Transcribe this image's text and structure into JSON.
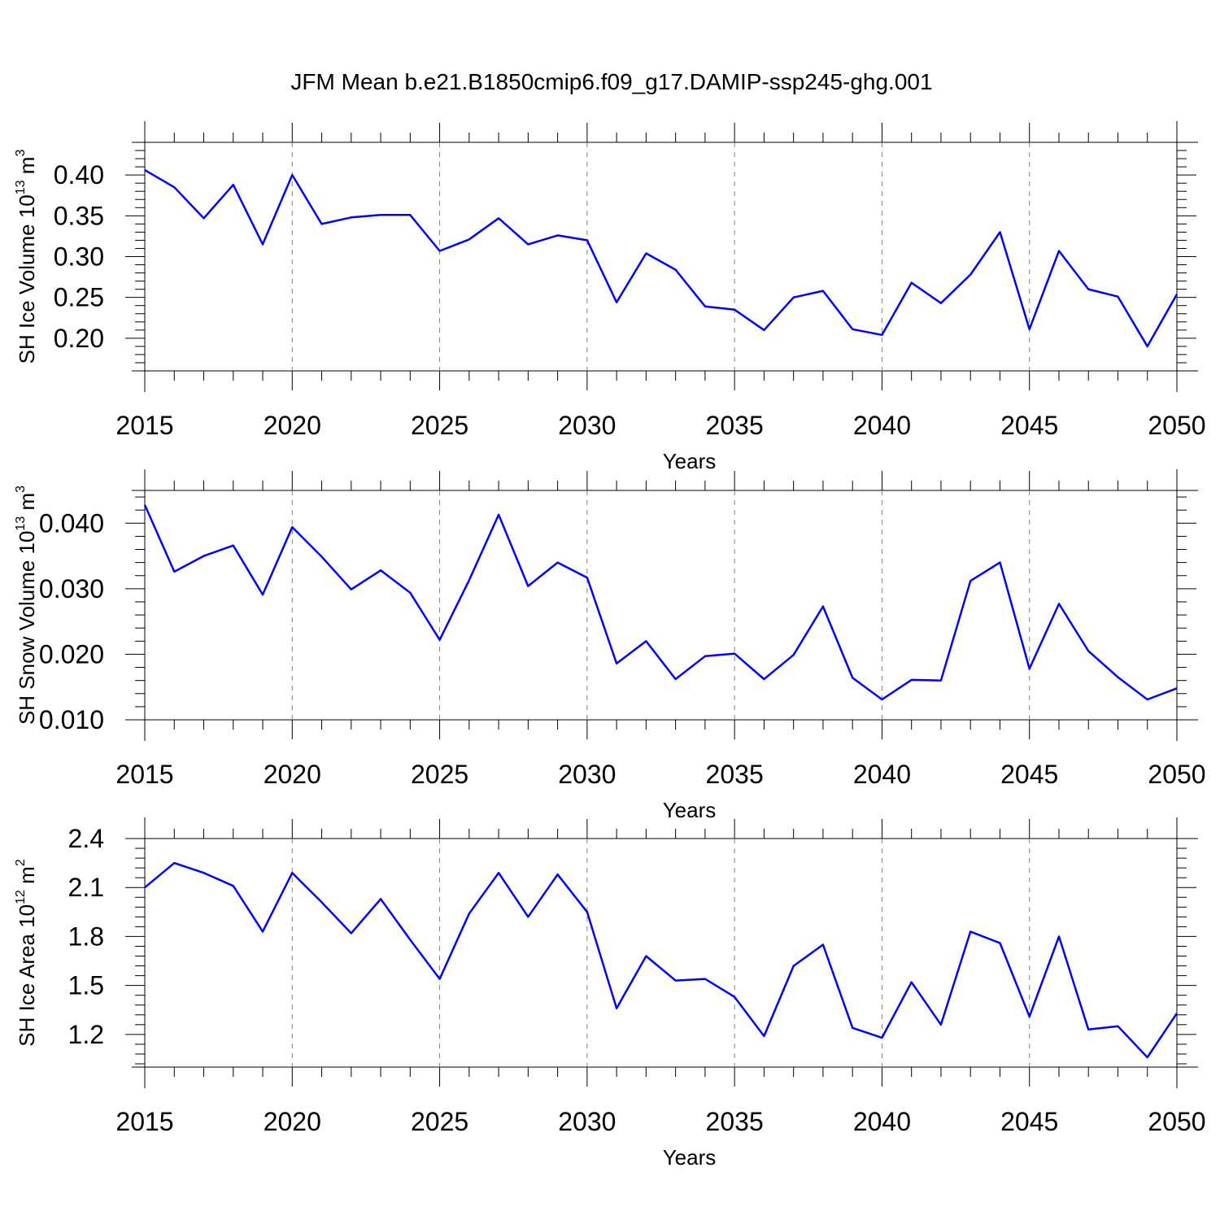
{
  "title": "JFM Mean b.e21.B1850cmip6.f09_g17.DAMIP-ssp245-ghg.001",
  "line_color": "#0000ff",
  "chart_data": [
    {
      "type": "line",
      "title": "",
      "xlabel": "Years",
      "ylabel": {
        "base": "SH Ice Volume 10",
        "exp": "13",
        "unit": " m",
        "unit_exp": "3"
      },
      "xlim": [
        2015,
        2050
      ],
      "ylim": [
        0.16,
        0.44
      ],
      "xticks": [
        "2015",
        "2020",
        "2025",
        "2030",
        "2035",
        "2040",
        "2045",
        "2050"
      ],
      "yticks": [
        "0.20",
        "0.25",
        "0.30",
        "0.35",
        "0.40"
      ],
      "grid": "vertical dashed at major x ticks",
      "x": [
        2015,
        2016,
        2017,
        2018,
        2019,
        2020,
        2021,
        2022,
        2023,
        2024,
        2025,
        2026,
        2027,
        2028,
        2029,
        2030,
        2031,
        2032,
        2033,
        2034,
        2035,
        2036,
        2037,
        2038,
        2039,
        2040,
        2041,
        2042,
        2043,
        2044,
        2045,
        2046,
        2047,
        2048,
        2049,
        2050
      ],
      "values": [
        0.406,
        0.385,
        0.347,
        0.388,
        0.315,
        0.4,
        0.34,
        0.348,
        0.351,
        0.351,
        0.307,
        0.321,
        0.347,
        0.315,
        0.326,
        0.32,
        0.244,
        0.304,
        0.284,
        0.239,
        0.235,
        0.21,
        0.25,
        0.258,
        0.211,
        0.204,
        0.268,
        0.243,
        0.278,
        0.33,
        0.211,
        0.307,
        0.26,
        0.251,
        0.19,
        0.254
      ]
    },
    {
      "type": "line",
      "title": "",
      "xlabel": "Years",
      "ylabel": {
        "base": "SH Snow Volume 10",
        "exp": "13",
        "unit": " m",
        "unit_exp": "3"
      },
      "xlim": [
        2015,
        2050
      ],
      "ylim": [
        0.01,
        0.045
      ],
      "xticks": [
        "2015",
        "2020",
        "2025",
        "2030",
        "2035",
        "2040",
        "2045",
        "2050"
      ],
      "yticks": [
        "0.010",
        "0.020",
        "0.030",
        "0.040"
      ],
      "grid": "vertical dashed at major x ticks",
      "x": [
        2015,
        2016,
        2017,
        2018,
        2019,
        2020,
        2021,
        2022,
        2023,
        2024,
        2025,
        2026,
        2027,
        2028,
        2029,
        2030,
        2031,
        2032,
        2033,
        2034,
        2035,
        2036,
        2037,
        2038,
        2039,
        2040,
        2041,
        2042,
        2043,
        2044,
        2045,
        2046,
        2047,
        2048,
        2049,
        2050
      ],
      "values": [
        0.0428,
        0.0326,
        0.035,
        0.0366,
        0.0291,
        0.0394,
        0.0349,
        0.0299,
        0.0328,
        0.0294,
        0.0222,
        0.0313,
        0.0413,
        0.0304,
        0.034,
        0.0317,
        0.0186,
        0.022,
        0.0162,
        0.0197,
        0.0201,
        0.0162,
        0.0199,
        0.0273,
        0.0164,
        0.0131,
        0.0161,
        0.016,
        0.0312,
        0.034,
        0.0178,
        0.0277,
        0.0205,
        0.0165,
        0.0131,
        0.0148
      ]
    },
    {
      "type": "line",
      "title": "",
      "xlabel": "Years",
      "ylabel": {
        "base": "SH Ice Area 10",
        "exp": "12",
        "unit": " m",
        "unit_exp": "2"
      },
      "xlim": [
        2015,
        2050
      ],
      "ylim": [
        1.0,
        2.4
      ],
      "xticks": [
        "2015",
        "2020",
        "2025",
        "2030",
        "2035",
        "2040",
        "2045",
        "2050"
      ],
      "yticks": [
        "1.2",
        "1.5",
        "1.8",
        "2.1",
        "2.4"
      ],
      "grid": "vertical dashed at major x ticks",
      "x": [
        2015,
        2016,
        2017,
        2018,
        2019,
        2020,
        2021,
        2022,
        2023,
        2024,
        2025,
        2026,
        2027,
        2028,
        2029,
        2030,
        2031,
        2032,
        2033,
        2034,
        2035,
        2036,
        2037,
        2038,
        2039,
        2040,
        2041,
        2042,
        2043,
        2044,
        2045,
        2046,
        2047,
        2048,
        2049,
        2050
      ],
      "values": [
        2.1,
        2.25,
        2.19,
        2.11,
        1.83,
        2.19,
        2.01,
        1.82,
        2.03,
        1.78,
        1.54,
        1.94,
        2.19,
        1.92,
        2.18,
        1.95,
        1.36,
        1.68,
        1.53,
        1.54,
        1.43,
        1.19,
        1.62,
        1.75,
        1.24,
        1.18,
        1.52,
        1.26,
        1.83,
        1.76,
        1.31,
        1.8,
        1.23,
        1.25,
        1.06,
        1.33
      ]
    }
  ]
}
